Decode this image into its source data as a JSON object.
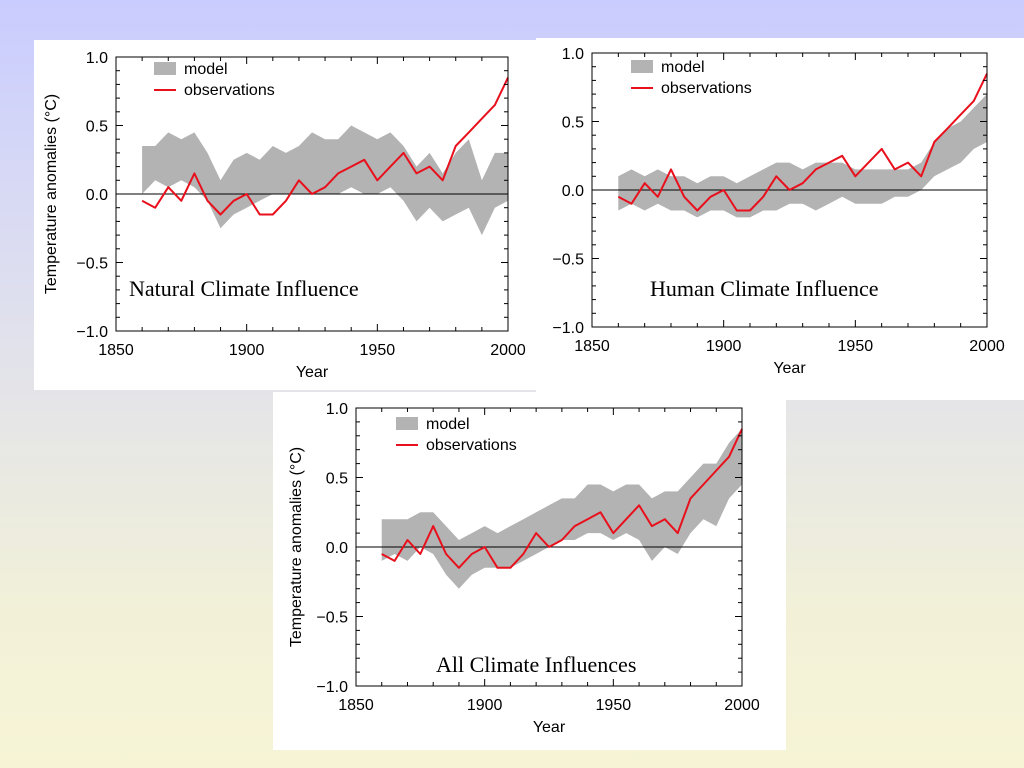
{
  "chart_data": [
    {
      "id": "natural",
      "type": "area",
      "caption": "Natural Climate Influence",
      "xlabel": "Year",
      "ylabel": "Temperature anomalies (°C)",
      "xlim": [
        1850,
        2000
      ],
      "ylim": [
        -1.0,
        1.0
      ],
      "xticks": [
        1850,
        1900,
        1950,
        2000
      ],
      "yticks": [
        "1.0",
        "0.5",
        "0.0",
        "−0.5",
        "−1.0"
      ],
      "legend": {
        "placement": "top-left",
        "model": "model",
        "observations": "observations"
      },
      "colors": {
        "model": "#b3b3b3",
        "observations": "#e8101c"
      },
      "x": [
        1860,
        1865,
        1870,
        1875,
        1880,
        1885,
        1890,
        1895,
        1900,
        1905,
        1910,
        1915,
        1920,
        1925,
        1930,
        1935,
        1940,
        1945,
        1950,
        1955,
        1960,
        1965,
        1970,
        1975,
        1980,
        1985,
        1990,
        1995,
        2000
      ],
      "series": [
        {
          "name": "model",
          "kind": "band",
          "lower": [
            0.0,
            0.1,
            0.05,
            0.1,
            0.05,
            -0.05,
            -0.25,
            -0.15,
            -0.1,
            -0.05,
            0.0,
            0.0,
            0.0,
            0.0,
            0.0,
            0.0,
            0.05,
            0.0,
            0.0,
            0.05,
            -0.05,
            -0.2,
            -0.1,
            -0.2,
            -0.15,
            -0.1,
            -0.3,
            -0.1,
            -0.05
          ],
          "upper": [
            0.35,
            0.35,
            0.45,
            0.4,
            0.45,
            0.3,
            0.1,
            0.25,
            0.3,
            0.25,
            0.35,
            0.3,
            0.35,
            0.45,
            0.4,
            0.4,
            0.5,
            0.45,
            0.4,
            0.45,
            0.35,
            0.2,
            0.3,
            0.15,
            0.3,
            0.4,
            0.1,
            0.3,
            0.3
          ]
        },
        {
          "name": "observations",
          "kind": "line",
          "values": [
            -0.05,
            -0.1,
            0.05,
            -0.05,
            0.15,
            -0.05,
            -0.15,
            -0.05,
            0.0,
            -0.15,
            -0.15,
            -0.05,
            0.1,
            0.0,
            0.05,
            0.15,
            0.2,
            0.25,
            0.1,
            0.2,
            0.3,
            0.15,
            0.2,
            0.1,
            0.35,
            0.45,
            0.55,
            0.65,
            0.85
          ]
        }
      ]
    },
    {
      "id": "human",
      "type": "area",
      "caption": "Human Climate Influence",
      "xlabel": "Year",
      "ylabel": "",
      "xlim": [
        1850,
        2000
      ],
      "ylim": [
        -1.0,
        1.0
      ],
      "xticks": [
        1850,
        1900,
        1950,
        2000
      ],
      "yticks": [
        "1.0",
        "0.5",
        "0.0",
        "−0.5",
        "−1.0"
      ],
      "legend": {
        "placement": "top-left",
        "model": "model",
        "observations": "observations"
      },
      "colors": {
        "model": "#b3b3b3",
        "observations": "#e8101c"
      },
      "x": [
        1860,
        1865,
        1870,
        1875,
        1880,
        1885,
        1890,
        1895,
        1900,
        1905,
        1910,
        1915,
        1920,
        1925,
        1930,
        1935,
        1940,
        1945,
        1950,
        1955,
        1960,
        1965,
        1970,
        1975,
        1980,
        1985,
        1990,
        1995,
        2000
      ],
      "series": [
        {
          "name": "model",
          "kind": "band",
          "lower": [
            -0.15,
            -0.1,
            -0.15,
            -0.1,
            -0.15,
            -0.15,
            -0.2,
            -0.15,
            -0.15,
            -0.2,
            -0.2,
            -0.15,
            -0.15,
            -0.1,
            -0.1,
            -0.15,
            -0.1,
            -0.05,
            -0.1,
            -0.1,
            -0.1,
            -0.05,
            -0.05,
            0.0,
            0.1,
            0.15,
            0.2,
            0.3,
            0.35
          ],
          "upper": [
            0.1,
            0.15,
            0.1,
            0.15,
            0.1,
            0.1,
            0.05,
            0.1,
            0.1,
            0.05,
            0.1,
            0.15,
            0.2,
            0.2,
            0.15,
            0.2,
            0.2,
            0.2,
            0.15,
            0.15,
            0.15,
            0.15,
            0.15,
            0.2,
            0.35,
            0.45,
            0.5,
            0.6,
            0.7
          ]
        },
        {
          "name": "observations",
          "kind": "line",
          "values": [
            -0.05,
            -0.1,
            0.05,
            -0.05,
            0.15,
            -0.05,
            -0.15,
            -0.05,
            0.0,
            -0.15,
            -0.15,
            -0.05,
            0.1,
            0.0,
            0.05,
            0.15,
            0.2,
            0.25,
            0.1,
            0.2,
            0.3,
            0.15,
            0.2,
            0.1,
            0.35,
            0.45,
            0.55,
            0.65,
            0.85
          ]
        }
      ]
    },
    {
      "id": "all",
      "type": "area",
      "caption": "All Climate Influences",
      "xlabel": "Year",
      "ylabel": "Temperature anomalies (°C)",
      "xlim": [
        1850,
        2000
      ],
      "ylim": [
        -1.0,
        1.0
      ],
      "xticks": [
        1850,
        1900,
        1950,
        2000
      ],
      "yticks": [
        "1.0",
        "0.5",
        "0.0",
        "−0.5",
        "−1.0"
      ],
      "legend": {
        "placement": "top-left",
        "model": "model",
        "observations": "observations"
      },
      "colors": {
        "model": "#b3b3b3",
        "observations": "#e8101c"
      },
      "x": [
        1860,
        1865,
        1870,
        1875,
        1880,
        1885,
        1890,
        1895,
        1900,
        1905,
        1910,
        1915,
        1920,
        1925,
        1930,
        1935,
        1940,
        1945,
        1950,
        1955,
        1960,
        1965,
        1970,
        1975,
        1980,
        1985,
        1990,
        1995,
        2000
      ],
      "series": [
        {
          "name": "model",
          "kind": "band",
          "lower": [
            -0.1,
            -0.05,
            -0.1,
            0.0,
            -0.05,
            -0.2,
            -0.3,
            -0.2,
            -0.15,
            -0.15,
            -0.15,
            -0.1,
            -0.05,
            0.0,
            0.05,
            0.05,
            0.1,
            0.1,
            0.05,
            0.1,
            0.05,
            -0.1,
            0.0,
            -0.05,
            0.1,
            0.2,
            0.15,
            0.35,
            0.45
          ],
          "upper": [
            0.2,
            0.2,
            0.2,
            0.25,
            0.25,
            0.15,
            0.05,
            0.1,
            0.15,
            0.1,
            0.15,
            0.2,
            0.25,
            0.3,
            0.35,
            0.35,
            0.45,
            0.45,
            0.4,
            0.45,
            0.45,
            0.35,
            0.4,
            0.4,
            0.5,
            0.6,
            0.6,
            0.75,
            0.85
          ]
        },
        {
          "name": "observations",
          "kind": "line",
          "values": [
            -0.05,
            -0.1,
            0.05,
            -0.05,
            0.15,
            -0.05,
            -0.15,
            -0.05,
            0.0,
            -0.15,
            -0.15,
            -0.05,
            0.1,
            0.0,
            0.05,
            0.15,
            0.2,
            0.25,
            0.1,
            0.2,
            0.3,
            0.15,
            0.2,
            0.1,
            0.35,
            0.45,
            0.55,
            0.65,
            0.85
          ]
        }
      ]
    }
  ]
}
